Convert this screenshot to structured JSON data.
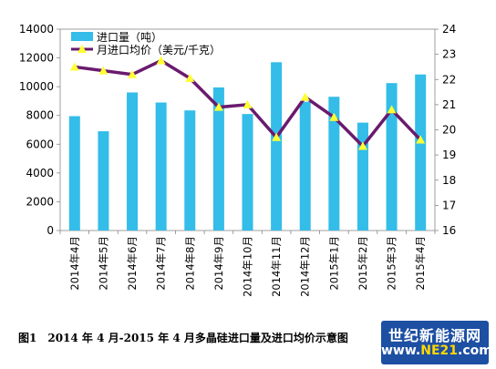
{
  "chart_data": {
    "type": "bar",
    "categories": [
      "2014年4月",
      "2014年5月",
      "2014年6月",
      "2014年7月",
      "2014年8月",
      "2014年9月",
      "2014年10月",
      "2014年11月",
      "2014年12月",
      "2015年1月",
      "2015年2月",
      "2015年3月",
      "2015年4月"
    ],
    "series": [
      {
        "name": "进口量（吨）",
        "type": "bar",
        "axis": "left",
        "color": "#33bde8",
        "values": [
          7950,
          6900,
          9600,
          8900,
          8350,
          9950,
          8100,
          11700,
          8950,
          9300,
          7500,
          10250,
          10850
        ]
      },
      {
        "name": "月进口均价（美元/千克）",
        "type": "line",
        "axis": "right",
        "color": "#6a1a6e",
        "marker_color": "#ffff33",
        "values": [
          22.5,
          22.35,
          22.2,
          22.75,
          22.05,
          20.9,
          21.0,
          19.7,
          21.3,
          20.5,
          19.35,
          20.8,
          19.6
        ]
      }
    ],
    "ylim_left": [
      0,
      14000
    ],
    "yticks_left": [
      0,
      2000,
      4000,
      6000,
      8000,
      10000,
      12000,
      14000
    ],
    "ylim_right": [
      16,
      24
    ],
    "yticks_right": [
      16,
      17,
      18,
      19,
      20,
      21,
      22,
      23,
      24
    ],
    "grid": false,
    "legend": "top-left"
  },
  "caption": "图1　2014 年 4 月-2015 年 4 月多晶硅进口量及进口均价示意图",
  "watermark": {
    "line1": "世纪新能源网",
    "line2_prefix": "www.",
    "line2_brand": "NE21",
    "line2_suffix": ".com"
  }
}
